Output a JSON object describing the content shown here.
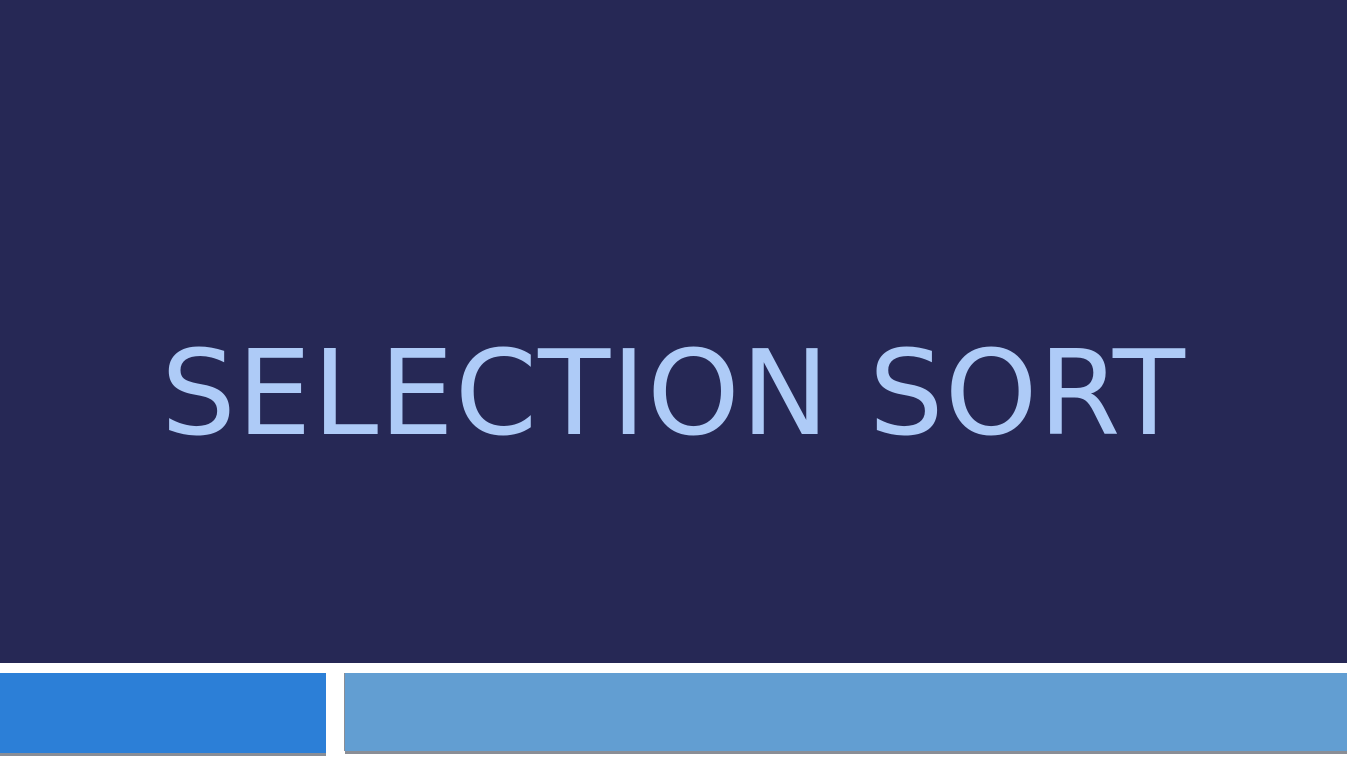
{
  "slide": {
    "title": "SELECTION SORT"
  },
  "colors": {
    "background": "#262855",
    "title_text": "#aecbf7",
    "accent_left": "#2c7fd7",
    "accent_right": "#629ed2"
  }
}
